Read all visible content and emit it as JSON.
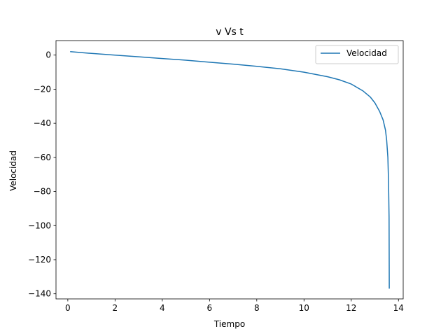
{
  "chart_data": {
    "type": "line",
    "title": "v Vs t",
    "xlabel": "Tiempo",
    "ylabel": "Velocidad",
    "xlim": [
      -0.5,
      14.2
    ],
    "ylim": [
      -143,
      8.5
    ],
    "xticks": [
      0,
      2,
      4,
      6,
      8,
      10,
      12,
      14
    ],
    "yticks": [
      0,
      -20,
      -40,
      -60,
      -80,
      -100,
      -120,
      -140
    ],
    "xtick_labels": [
      "0",
      "2",
      "4",
      "6",
      "8",
      "10",
      "12",
      "14"
    ],
    "ytick_labels": [
      "0",
      "−20",
      "−40",
      "−60",
      "−80",
      "−100",
      "−120",
      "−140"
    ],
    "grid": false,
    "legend_position": "upper right",
    "series": [
      {
        "name": "Velocidad",
        "color": "#1f77b4",
        "x": [
          0.1,
          1,
          2,
          3,
          4,
          5,
          6,
          7,
          8,
          9,
          10,
          11,
          11.5,
          12,
          12.5,
          12.8,
          13.0,
          13.2,
          13.35,
          13.45,
          13.5,
          13.55,
          13.58,
          13.6,
          13.61
        ],
        "y": [
          2.0,
          1.0,
          0.0,
          -1.0,
          -2.0,
          -3.0,
          -4.2,
          -5.3,
          -6.6,
          -8.0,
          -10.0,
          -12.7,
          -14.5,
          -17.0,
          -21.0,
          -24.5,
          -28.0,
          -33.0,
          -38.0,
          -44.0,
          -50.0,
          -60.0,
          -75.0,
          -95.0,
          -137.0
        ]
      }
    ]
  }
}
